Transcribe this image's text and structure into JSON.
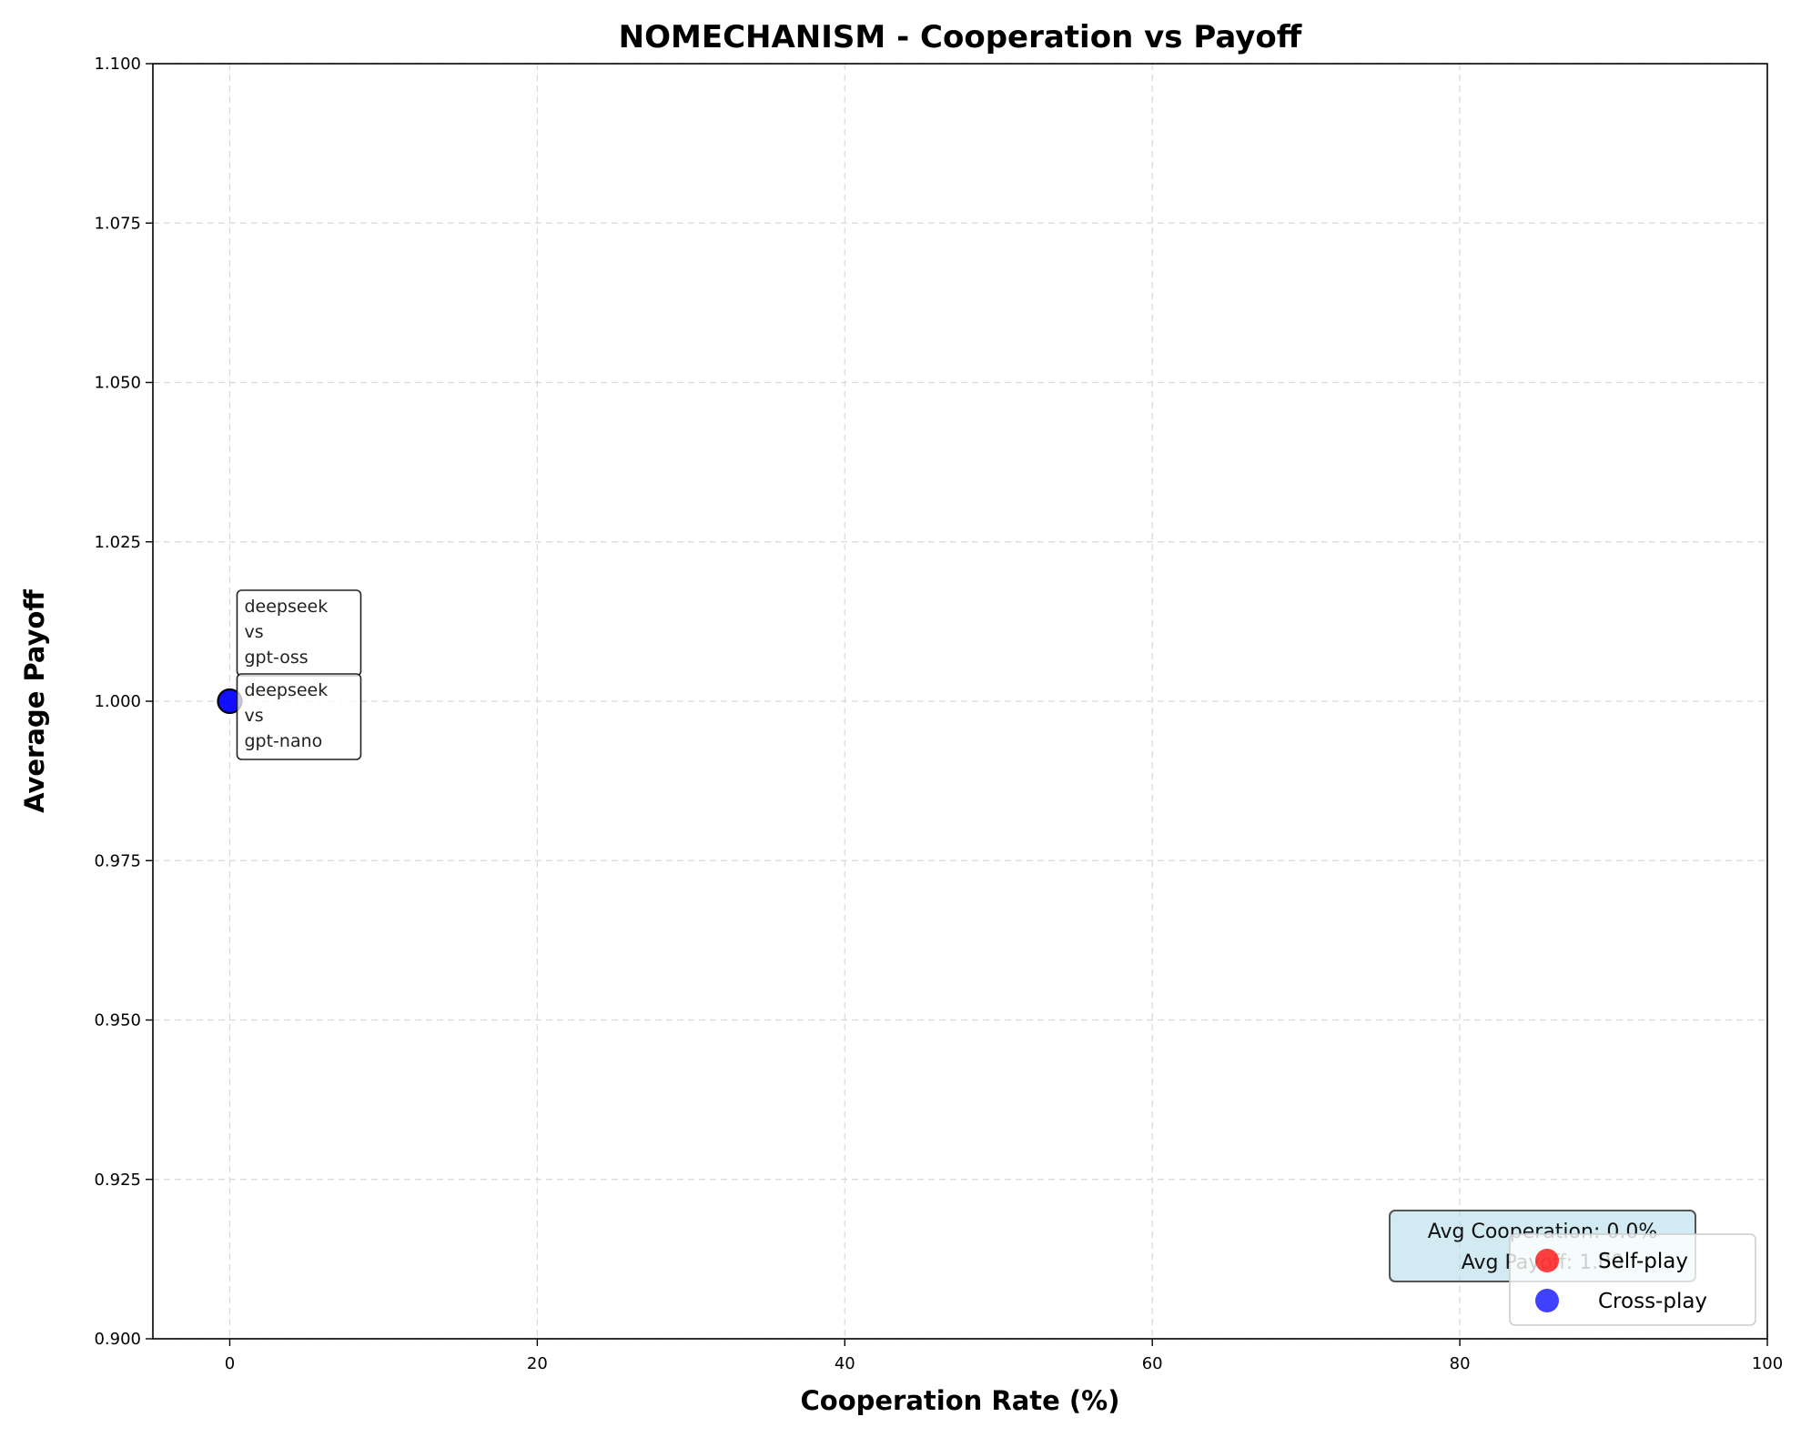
{
  "chart_data": {
    "type": "scatter",
    "title": "NOMECHANISM - Cooperation vs Payoff",
    "xlabel": "Cooperation Rate (%)",
    "ylabel": "Average Payoff",
    "xlim": [
      -5,
      100
    ],
    "ylim": [
      0.9,
      1.1
    ],
    "xticks": [
      0,
      20,
      40,
      60,
      80,
      100
    ],
    "yticks": [
      0.9,
      0.925,
      0.95,
      0.975,
      1.0,
      1.025,
      1.05,
      1.075,
      1.1
    ],
    "xtick_labels": [
      "0",
      "20",
      "40",
      "60",
      "80",
      "100"
    ],
    "ytick_labels": [
      "0.900",
      "0.925",
      "0.950",
      "0.975",
      "1.000",
      "1.025",
      "1.050",
      "1.075",
      "1.100"
    ],
    "grid": true,
    "legend_position": "bottom-right",
    "series": [
      {
        "name": "Self-play",
        "color": "#ff0000",
        "points": []
      },
      {
        "name": "Cross-play",
        "color": "#0000ff",
        "points": [
          {
            "x": 0,
            "y": 1.0
          },
          {
            "x": 0,
            "y": 1.0
          }
        ]
      }
    ],
    "annotations": [
      {
        "x": 0,
        "y": 1.0,
        "lines": [
          "deepseek",
          "vs",
          "gpt-oss"
        ]
      },
      {
        "x": 0,
        "y": 1.0,
        "lines": [
          "deepseek",
          "vs",
          "gpt-nano"
        ]
      }
    ],
    "stats_box": {
      "line1": "Avg Cooperation: 0.0%",
      "line2": "Avg Payoff: 1.00",
      "background": "#add8e6"
    }
  }
}
